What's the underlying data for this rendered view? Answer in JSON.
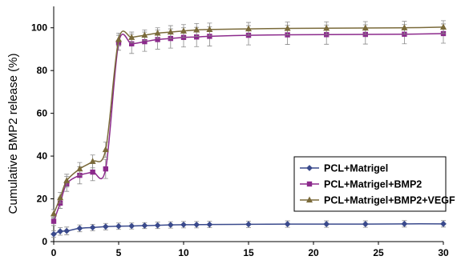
{
  "chart_data": {
    "type": "line",
    "title": "",
    "xlabel": "",
    "ylabel": "Cumulative BMP2 release (%)",
    "xlim": [
      0,
      30
    ],
    "ylim": [
      0,
      110
    ],
    "xticks": [
      "0",
      "5",
      "10",
      "15",
      "20",
      "25",
      "30"
    ],
    "yticks": [
      "0",
      "20",
      "40",
      "60",
      "80",
      "100"
    ],
    "x": [
      0,
      0.5,
      1,
      2,
      3,
      4,
      5,
      6,
      7,
      8,
      9,
      10,
      11,
      12,
      15,
      18,
      21,
      24,
      27,
      30
    ],
    "legend_position": "bottom-right",
    "grid": false,
    "series": [
      {
        "name": "PCL+Matrigel",
        "color": "#3a4a8c",
        "marker": "diamond",
        "values": [
          3.5,
          4.8,
          5.0,
          6.2,
          6.6,
          7.0,
          7.2,
          7.3,
          7.5,
          7.6,
          7.8,
          7.9,
          7.9,
          8.0,
          8.1,
          8.2,
          8.2,
          8.2,
          8.3,
          8.3
        ],
        "errors": [
          1.5,
          1.8,
          1.8,
          1.6,
          1.5,
          1.5,
          1.5,
          1.4,
          1.4,
          1.5,
          1.5,
          1.5,
          1.5,
          1.5,
          1.5,
          1.5,
          1.5,
          1.5,
          1.5,
          1.5
        ]
      },
      {
        "name": "PCL+Matrigel+BMP2",
        "color": "#8c2a8c",
        "marker": "square",
        "values": [
          9.5,
          18.0,
          27.0,
          31.0,
          32.5,
          34.0,
          93.0,
          92.5,
          93.5,
          94.5,
          95.0,
          95.5,
          95.7,
          96.0,
          96.5,
          96.7,
          96.8,
          96.9,
          97.0,
          97.3
        ],
        "errors": [
          2.0,
          2.5,
          3.5,
          4.0,
          4.0,
          4.5,
          3.5,
          4.5,
          4.5,
          4.5,
          4.5,
          4.5,
          4.5,
          4.5,
          4.5,
          4.5,
          4.5,
          4.5,
          4.5,
          4.5
        ]
      },
      {
        "name": "PCL+Matrigel+BMP2+VEGF",
        "color": "#7a6a3a",
        "marker": "triangle",
        "values": [
          13.0,
          20.5,
          28.5,
          34.0,
          37.5,
          43.0,
          94.5,
          95.5,
          96.5,
          97.5,
          98.0,
          98.5,
          99.0,
          99.2,
          99.5,
          99.7,
          99.8,
          99.9,
          100.0,
          100.3
        ],
        "errors": [
          2.0,
          2.5,
          3.0,
          3.0,
          3.0,
          3.5,
          3.0,
          2.5,
          2.5,
          2.5,
          3.0,
          3.0,
          3.0,
          3.0,
          3.0,
          3.0,
          3.0,
          3.0,
          3.0,
          3.0
        ]
      }
    ]
  }
}
